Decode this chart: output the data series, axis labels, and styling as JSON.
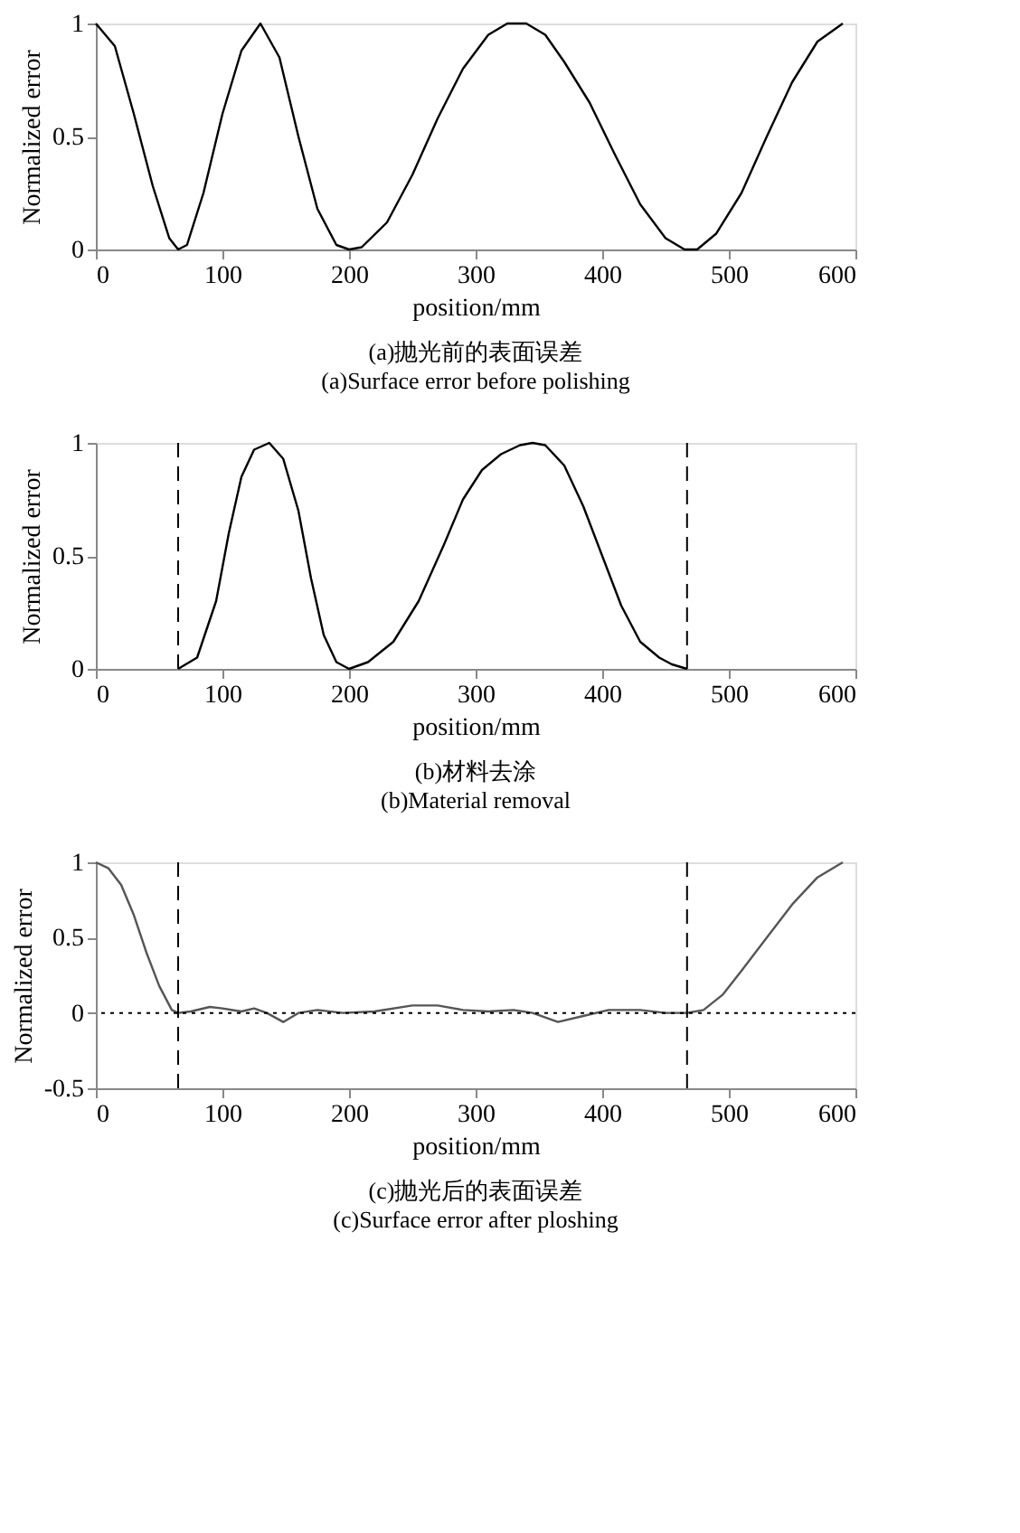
{
  "chart_data": [
    {
      "type": "line",
      "title": "(a)抛光前的表面误差",
      "subtitle": "(a)Surface error before polishing",
      "xlabel": "position/mm",
      "ylabel": "Normalized error",
      "grid": false,
      "line_style": "solid",
      "xlim": [
        0,
        600
      ],
      "xticks": [
        0,
        100,
        200,
        300,
        400,
        500,
        600
      ],
      "ylim": [
        0,
        1
      ],
      "yticks": [
        0,
        0.5,
        1
      ],
      "x": [
        0,
        15,
        30,
        45,
        58,
        65,
        72,
        85,
        100,
        115,
        130,
        145,
        160,
        175,
        190,
        200,
        210,
        230,
        250,
        270,
        290,
        310,
        325,
        340,
        355,
        370,
        390,
        410,
        430,
        450,
        465,
        475,
        490,
        510,
        530,
        550,
        570,
        590
      ],
      "series": [
        {
          "color": "#000000",
          "values": [
            1,
            0.9,
            0.6,
            0.28,
            0.05,
            0,
            0.02,
            0.25,
            0.6,
            0.88,
            1,
            0.85,
            0.5,
            0.18,
            0.02,
            0,
            0.01,
            0.12,
            0.33,
            0.58,
            0.8,
            0.95,
            1,
            1,
            0.95,
            0.83,
            0.65,
            0.42,
            0.2,
            0.05,
            0,
            0,
            0.07,
            0.25,
            0.5,
            0.74,
            0.92,
            1
          ]
        }
      ]
    },
    {
      "type": "line",
      "title": "(b)材料去涂",
      "subtitle": "(b)Material removal",
      "xlabel": "position/mm",
      "ylabel": "Normalized error",
      "grid": false,
      "line_style": "solid",
      "xlim": [
        0,
        600
      ],
      "xticks": [
        0,
        100,
        200,
        300,
        400,
        500,
        600
      ],
      "ylim": [
        0,
        1
      ],
      "yticks": [
        0,
        0.5,
        1
      ],
      "x": [
        65,
        80,
        95,
        105,
        115,
        125,
        137,
        148,
        160,
        170,
        180,
        190,
        200,
        215,
        235,
        255,
        275,
        290,
        305,
        320,
        335,
        345,
        355,
        370,
        385,
        400,
        415,
        430,
        445,
        455,
        467
      ],
      "series": [
        {
          "color": "#000000",
          "values": [
            0,
            0.05,
            0.3,
            0.6,
            0.85,
            0.97,
            1,
            0.93,
            0.7,
            0.4,
            0.15,
            0.03,
            0,
            0.03,
            0.12,
            0.3,
            0.55,
            0.75,
            0.88,
            0.95,
            0.99,
            1,
            0.99,
            0.9,
            0.72,
            0.5,
            0.28,
            0.12,
            0.05,
            0.02,
            0
          ]
        }
      ],
      "ref_lines": [
        {
          "axis": "x",
          "value": 65,
          "line_style": "dashed",
          "color": "#000000"
        },
        {
          "axis": "x",
          "value": 467,
          "line_style": "dashed",
          "color": "#000000"
        }
      ]
    },
    {
      "type": "line",
      "title": "(c)抛光后的表面误差",
      "subtitle": "(c)Surface error after ploshing",
      "xlabel": "position/mm",
      "ylabel": "Normalized error",
      "grid": false,
      "line_style": "solid",
      "xlim": [
        0,
        600
      ],
      "xticks": [
        0,
        100,
        200,
        300,
        400,
        500,
        600
      ],
      "ylim": [
        -0.5,
        1
      ],
      "yticks": [
        -0.5,
        0,
        0.5,
        1
      ],
      "x": [
        0,
        10,
        20,
        30,
        40,
        50,
        60,
        65,
        75,
        90,
        100,
        115,
        125,
        135,
        148,
        160,
        175,
        195,
        220,
        250,
        270,
        290,
        310,
        330,
        345,
        365,
        385,
        405,
        430,
        450,
        467,
        480,
        495,
        510,
        530,
        550,
        570,
        590
      ],
      "series": [
        {
          "color": "#555555",
          "values": [
            1,
            0.96,
            0.85,
            0.65,
            0.4,
            0.18,
            0.02,
            0,
            0.01,
            0.04,
            0.03,
            0.01,
            0.03,
            0,
            -0.06,
            0,
            0.02,
            0,
            0.01,
            0.05,
            0.05,
            0.02,
            0.01,
            0.02,
            0,
            -0.06,
            -0.02,
            0.02,
            0.02,
            0,
            0,
            0.02,
            0.12,
            0.28,
            0.5,
            0.72,
            0.9,
            1
          ]
        }
      ],
      "ref_lines": [
        {
          "axis": "x",
          "value": 65,
          "line_style": "dashed",
          "color": "#000000"
        },
        {
          "axis": "x",
          "value": 467,
          "line_style": "dashed",
          "color": "#000000"
        },
        {
          "axis": "y",
          "value": 0,
          "line_style": "dotted",
          "color": "#000000"
        }
      ]
    }
  ]
}
